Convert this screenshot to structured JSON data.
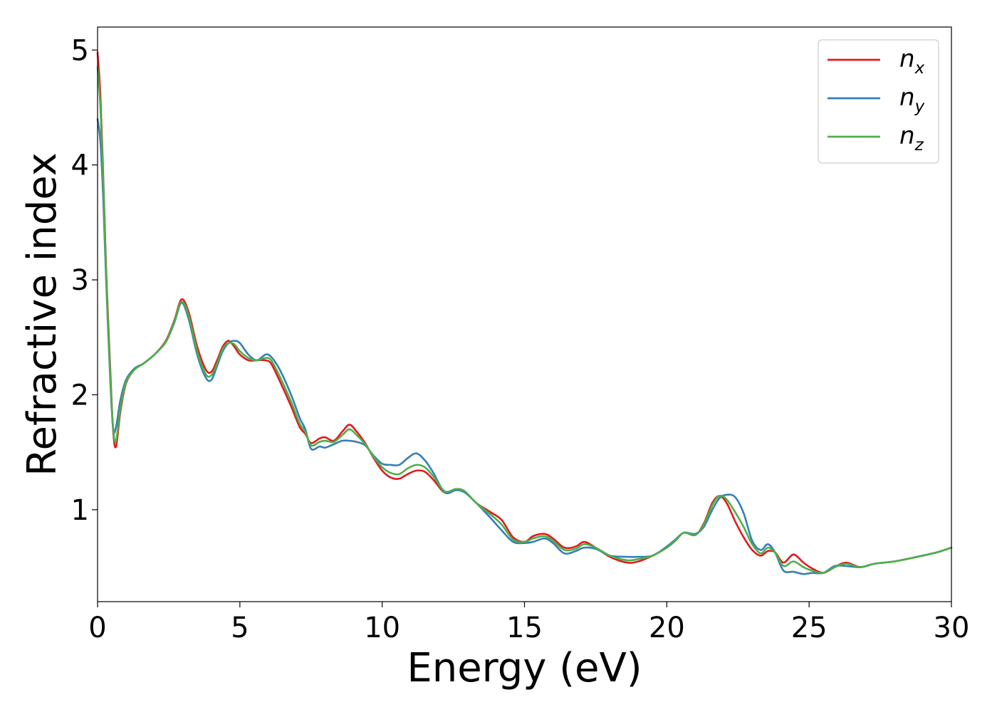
{
  "chart_data": {
    "type": "line",
    "title": "",
    "xlabel": "Energy (eV)",
    "ylabel": "Refractive index",
    "xlim": [
      0,
      30
    ],
    "ylim": [
      0.2,
      5.2
    ],
    "xticks": [
      "0",
      "5",
      "10",
      "15",
      "20",
      "25",
      "30"
    ],
    "yticks": [
      "1",
      "2",
      "3",
      "4",
      "5"
    ],
    "grid": false,
    "legend_position": "top-right",
    "series": [
      {
        "name": "n",
        "subscript": "x",
        "color": "#e41a1c",
        "x": [
          0,
          0.1,
          0.2,
          0.3,
          0.45,
          0.55,
          0.65,
          0.8,
          1.0,
          1.3,
          1.6,
          2.0,
          2.4,
          2.7,
          2.95,
          3.2,
          3.5,
          3.8,
          4.0,
          4.2,
          4.4,
          4.6,
          4.8,
          5.0,
          5.3,
          5.6,
          5.9,
          6.1,
          6.4,
          6.8,
          7.1,
          7.3,
          7.5,
          7.8,
          8.0,
          8.3,
          8.6,
          8.85,
          9.1,
          9.4,
          9.7,
          10.0,
          10.3,
          10.6,
          10.9,
          11.2,
          11.5,
          11.8,
          12.2,
          12.6,
          12.9,
          13.3,
          13.8,
          14.2,
          14.6,
          15.0,
          15.3,
          15.7,
          16.0,
          16.4,
          16.8,
          17.1,
          17.5,
          18.0,
          18.6,
          19.0,
          19.5,
          20.0,
          20.3,
          20.6,
          21.0,
          21.3,
          21.6,
          21.85,
          22.1,
          22.4,
          22.7,
          23.0,
          23.3,
          23.55,
          23.8,
          24.1,
          24.45,
          24.8,
          25.1,
          25.5,
          25.9,
          26.3,
          26.8,
          27.3,
          28.0,
          28.8,
          29.5,
          30.0
        ],
        "y": [
          4.98,
          4.6,
          3.9,
          3.1,
          2.2,
          1.68,
          1.55,
          1.85,
          2.1,
          2.22,
          2.27,
          2.35,
          2.47,
          2.65,
          2.83,
          2.72,
          2.42,
          2.22,
          2.2,
          2.3,
          2.42,
          2.47,
          2.42,
          2.35,
          2.3,
          2.3,
          2.3,
          2.27,
          2.12,
          1.9,
          1.72,
          1.66,
          1.58,
          1.62,
          1.63,
          1.6,
          1.68,
          1.74,
          1.68,
          1.58,
          1.45,
          1.34,
          1.28,
          1.27,
          1.31,
          1.34,
          1.33,
          1.26,
          1.15,
          1.18,
          1.16,
          1.06,
          0.98,
          0.91,
          0.76,
          0.72,
          0.77,
          0.79,
          0.75,
          0.67,
          0.68,
          0.72,
          0.67,
          0.59,
          0.54,
          0.55,
          0.6,
          0.67,
          0.73,
          0.8,
          0.78,
          0.88,
          1.06,
          1.12,
          1.06,
          0.9,
          0.76,
          0.65,
          0.6,
          0.64,
          0.63,
          0.54,
          0.61,
          0.54,
          0.49,
          0.45,
          0.5,
          0.54,
          0.5,
          0.53,
          0.55,
          0.59,
          0.63,
          0.67
        ]
      },
      {
        "name": "n",
        "subscript": "y",
        "color": "#377eb8",
        "x": [
          0,
          0.1,
          0.2,
          0.3,
          0.45,
          0.55,
          0.65,
          0.8,
          1.0,
          1.3,
          1.6,
          2.0,
          2.4,
          2.7,
          2.95,
          3.2,
          3.5,
          3.8,
          4.0,
          4.2,
          4.4,
          4.6,
          4.8,
          5.0,
          5.3,
          5.6,
          5.9,
          6.1,
          6.4,
          6.8,
          7.1,
          7.3,
          7.5,
          7.8,
          8.0,
          8.3,
          8.6,
          8.85,
          9.1,
          9.4,
          9.7,
          10.0,
          10.3,
          10.6,
          10.9,
          11.2,
          11.5,
          11.8,
          12.2,
          12.6,
          12.9,
          13.3,
          13.8,
          14.2,
          14.6,
          15.0,
          15.3,
          15.7,
          16.0,
          16.4,
          16.8,
          17.1,
          17.5,
          18.0,
          18.6,
          19.0,
          19.5,
          20.0,
          20.3,
          20.6,
          21.0,
          21.3,
          21.6,
          21.85,
          22.1,
          22.4,
          22.7,
          23.0,
          23.3,
          23.55,
          23.8,
          24.1,
          24.45,
          24.8,
          25.1,
          25.5,
          25.9,
          26.3,
          26.8,
          27.3,
          28.0,
          28.8,
          29.5,
          30.0
        ],
        "y": [
          4.4,
          4.2,
          3.7,
          3.0,
          2.1,
          1.7,
          1.72,
          1.95,
          2.13,
          2.23,
          2.27,
          2.35,
          2.46,
          2.63,
          2.8,
          2.66,
          2.35,
          2.15,
          2.13,
          2.25,
          2.38,
          2.45,
          2.47,
          2.45,
          2.35,
          2.3,
          2.35,
          2.33,
          2.22,
          2.0,
          1.8,
          1.7,
          1.53,
          1.55,
          1.54,
          1.57,
          1.6,
          1.6,
          1.59,
          1.56,
          1.47,
          1.4,
          1.39,
          1.39,
          1.45,
          1.49,
          1.43,
          1.32,
          1.15,
          1.17,
          1.15,
          1.06,
          0.93,
          0.82,
          0.72,
          0.71,
          0.72,
          0.75,
          0.71,
          0.62,
          0.64,
          0.67,
          0.66,
          0.6,
          0.59,
          0.59,
          0.6,
          0.68,
          0.74,
          0.8,
          0.79,
          0.85,
          1.0,
          1.1,
          1.13,
          1.11,
          0.97,
          0.73,
          0.65,
          0.7,
          0.63,
          0.47,
          0.46,
          0.44,
          0.45,
          0.45,
          0.51,
          0.51,
          0.5,
          0.53,
          0.55,
          0.59,
          0.63,
          0.67
        ]
      },
      {
        "name": "n",
        "subscript": "z",
        "color": "#4daf4a",
        "x": [
          0,
          0.1,
          0.2,
          0.3,
          0.45,
          0.55,
          0.65,
          0.8,
          1.0,
          1.3,
          1.6,
          2.0,
          2.4,
          2.7,
          2.95,
          3.2,
          3.5,
          3.8,
          4.0,
          4.2,
          4.4,
          4.6,
          4.8,
          5.0,
          5.3,
          5.6,
          5.9,
          6.1,
          6.4,
          6.8,
          7.1,
          7.3,
          7.5,
          7.8,
          8.0,
          8.3,
          8.6,
          8.85,
          9.1,
          9.4,
          9.7,
          10.0,
          10.3,
          10.6,
          10.9,
          11.2,
          11.5,
          11.8,
          12.2,
          12.6,
          12.9,
          13.3,
          13.8,
          14.2,
          14.6,
          15.0,
          15.3,
          15.7,
          16.0,
          16.4,
          16.8,
          17.1,
          17.5,
          18.0,
          18.6,
          19.0,
          19.5,
          20.0,
          20.3,
          20.6,
          21.0,
          21.3,
          21.6,
          21.85,
          22.1,
          22.4,
          22.7,
          23.0,
          23.3,
          23.55,
          23.8,
          24.1,
          24.45,
          24.8,
          25.1,
          25.5,
          25.9,
          26.3,
          26.8,
          27.3,
          28.0,
          28.8,
          29.5,
          30.0
        ],
        "y": [
          4.85,
          4.5,
          3.85,
          3.05,
          2.15,
          1.7,
          1.6,
          1.88,
          2.11,
          2.22,
          2.27,
          2.35,
          2.46,
          2.64,
          2.81,
          2.69,
          2.38,
          2.18,
          2.17,
          2.27,
          2.4,
          2.45,
          2.44,
          2.38,
          2.32,
          2.3,
          2.32,
          2.3,
          2.16,
          1.94,
          1.75,
          1.68,
          1.56,
          1.59,
          1.6,
          1.59,
          1.65,
          1.7,
          1.65,
          1.57,
          1.46,
          1.37,
          1.32,
          1.31,
          1.36,
          1.39,
          1.37,
          1.29,
          1.16,
          1.18,
          1.16,
          1.06,
          0.96,
          0.87,
          0.74,
          0.72,
          0.75,
          0.77,
          0.73,
          0.65,
          0.66,
          0.7,
          0.67,
          0.6,
          0.56,
          0.57,
          0.6,
          0.67,
          0.73,
          0.8,
          0.78,
          0.87,
          1.04,
          1.12,
          1.09,
          0.98,
          0.85,
          0.7,
          0.62,
          0.67,
          0.63,
          0.51,
          0.55,
          0.5,
          0.47,
          0.45,
          0.5,
          0.53,
          0.5,
          0.53,
          0.55,
          0.59,
          0.63,
          0.67
        ]
      }
    ]
  }
}
